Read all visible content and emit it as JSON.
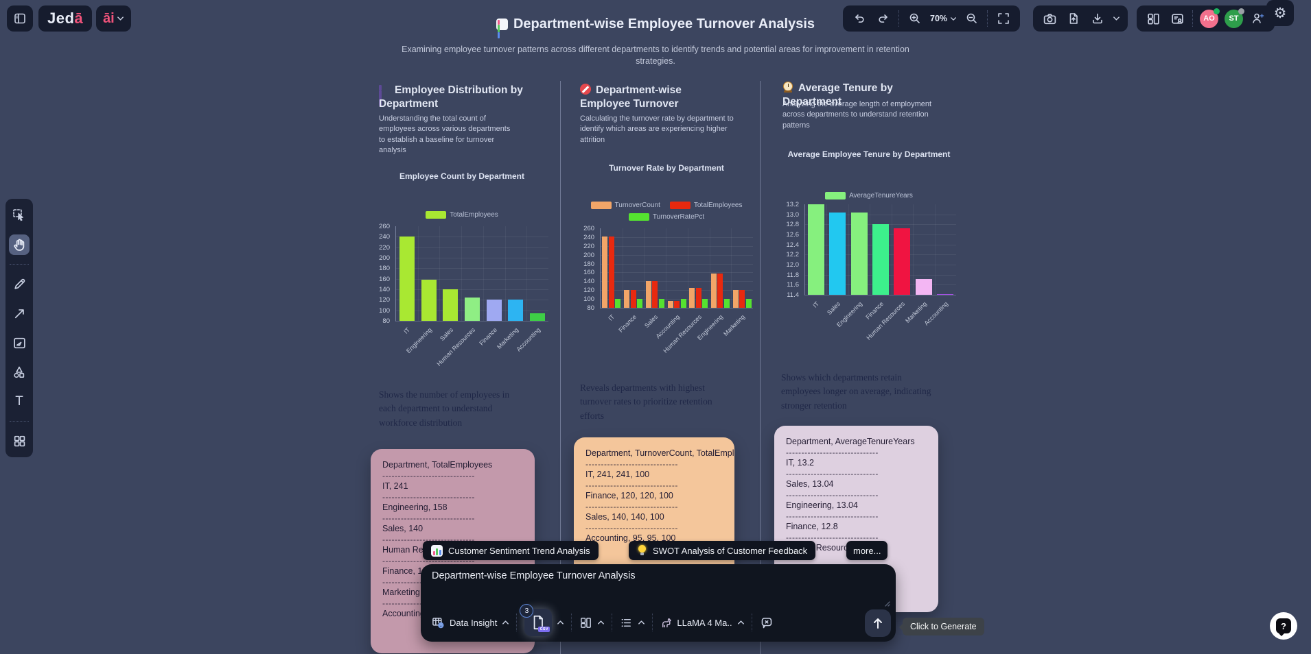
{
  "topbar": {
    "logo": {
      "main": "Jed",
      "accent": "ā"
    },
    "ai_label": "āi",
    "title": "Department-wise Employee Turnover Analysis",
    "subtitle": "Examining employee turnover patterns across different departments to identify trends and potential areas for improvement in retention strategies.",
    "zoom_level": "70%"
  },
  "collaborators": [
    {
      "initials": "AO",
      "color": "#f2708d",
      "status_color": "#1db460"
    },
    {
      "initials": "ST",
      "color": "#2e9e4b",
      "status_color": "#9aa0a6"
    }
  ],
  "columns": [
    {
      "heading": "Employee Distribution by Department",
      "icon": "purple-bar-chart-icon",
      "description": "Understanding the total count of employees across various departments to establish a baseline for turnover analysis",
      "insight": "Shows the number of employees in each department to understand workforce distribution",
      "card": {
        "color": "#c399ab",
        "separator": "------------------------------",
        "lines": [
          "Department, TotalEmployees",
          "IT, 241",
          "Engineering, 158",
          "Sales, 140",
          "Human Resources, 125",
          "Finance, 120",
          "Marketing, 120",
          "Accounting, 95"
        ]
      }
    },
    {
      "heading": "Department-wise Employee Turnover",
      "icon": "no-entry-icon",
      "description": "Calculating the turnover rate by department to identify which areas are experiencing higher attrition",
      "insight": "Reveals departments with highest turnover rates to prioritize retention efforts",
      "card": {
        "color": "#f4c69b",
        "separator": "------------------------------",
        "lines": [
          "Department, TurnoverCount, TotalEmployees, TurnoverRatePct",
          "IT, 241, 241, 100",
          "Finance, 120, 120, 100",
          "Sales, 140, 140, 100",
          "Accounting, 95, 95, 100"
        ]
      }
    },
    {
      "heading": "Average Tenure by Department",
      "icon": "clock-icon",
      "description": "Analyzing the average length of employment across departments to understand retention patterns",
      "insight": "Shows which departments retain employees longer on average, indicating stronger retention",
      "card": {
        "color": "#ded0e0",
        "separator": "------------------------------",
        "lines": [
          "Department, AverageTenureYears",
          "IT, 13.2",
          "Sales, 13.04",
          "Engineering, 13.04",
          "Finance, 12.8",
          "Human Resources, 12.72"
        ]
      }
    }
  ],
  "chart_data": [
    {
      "type": "bar",
      "title": "Employee Count by Department",
      "categories": [
        "IT",
        "Engineering",
        "Sales",
        "Human Resources",
        "Finance",
        "Marketing",
        "Accounting"
      ],
      "series": [
        {
          "name": "TotalEmployees",
          "color": "#a9e832",
          "values": [
            241,
            158,
            140,
            125,
            120,
            120,
            95
          ]
        }
      ],
      "bar_colors": [
        "#a9e832",
        "#a9e832",
        "#a9e832",
        "#8fee84",
        "#9fa9f2",
        "#2db4f2",
        "#3ecf46"
      ],
      "ylim": [
        80,
        260
      ],
      "ytick_step": 20,
      "tick_decimals": 0,
      "grid": true,
      "legend_position": "top"
    },
    {
      "type": "bar",
      "title": "Turnover Rate by Department",
      "categories": [
        "IT",
        "Finance",
        "Sales",
        "Accounting",
        "Human Resources",
        "Engineering",
        "Marketing"
      ],
      "series": [
        {
          "name": "TurnoverCount",
          "color": "#f2a568",
          "values": [
            241,
            120,
            140,
            95,
            125,
            158,
            120
          ]
        },
        {
          "name": "TotalEmployees",
          "color": "#e8290f",
          "values": [
            241,
            120,
            140,
            95,
            125,
            158,
            120
          ]
        },
        {
          "name": "TurnoverRatePct",
          "color": "#55e230",
          "values": [
            100,
            100,
            100,
            100,
            100,
            100,
            100
          ]
        }
      ],
      "ylim": [
        80,
        260
      ],
      "ytick_step": 20,
      "tick_decimals": 0,
      "grid": true,
      "legend_position": "top"
    },
    {
      "type": "bar",
      "title": "Average Employee Tenure by Department",
      "categories": [
        "IT",
        "Sales",
        "Engineering",
        "Finance",
        "Human Resources",
        "Marketing",
        "Accounting"
      ],
      "series": [
        {
          "name": "AverageTenureYears",
          "color": "#86f07e",
          "values": [
            13.2,
            13.04,
            13.04,
            12.8,
            12.72,
            11.72,
            11.42
          ]
        }
      ],
      "bar_colors": [
        "#86f07e",
        "#22c8f0",
        "#86f07e",
        "#3df08c",
        "#f01441",
        "#f3b6f3",
        "#a851e8"
      ],
      "ylim": [
        11.4,
        13.2
      ],
      "ytick_step": 0.2,
      "tick_decimals": 1,
      "grid": true,
      "legend_position": "top"
    }
  ],
  "suggestions": {
    "pills": [
      {
        "label": "Customer Sentiment Trend Analysis",
        "icon": "bar-chart-icon"
      },
      {
        "label": "SWOT Analysis of Customer Feedback",
        "icon": "lightbulb-icon"
      }
    ],
    "more_label": "more..."
  },
  "prompt": {
    "value": "Department-wise Employee Turnover Analysis",
    "toolbar": {
      "data_insight_label": "Data Insight",
      "csv_badge_count": "3",
      "csv_tag": "CSV",
      "model_label": "LLaMA 4 Ma.."
    },
    "generate_tooltip": "Click to Generate"
  },
  "help_label": "?"
}
